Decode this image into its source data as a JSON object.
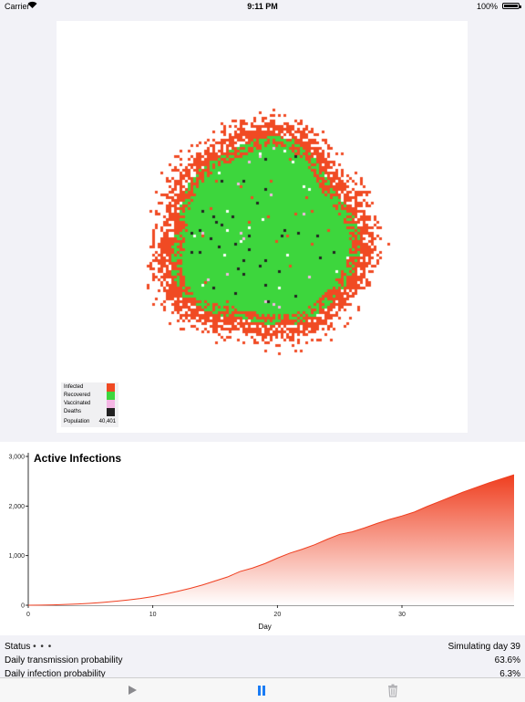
{
  "status_bar": {
    "carrier": "Carrier",
    "time": "9:11 PM",
    "battery": "100%",
    "wifi_icon": "wifi-icon"
  },
  "simulation": {
    "legend": {
      "items": [
        {
          "label": "Infected",
          "color": "#f04a23"
        },
        {
          "label": "Recovered",
          "color": "#3dd63d"
        },
        {
          "label": "Vaccinated",
          "color": "#f4b6e4"
        },
        {
          "label": "Deaths",
          "color": "#222222"
        }
      ],
      "population_label": "Population",
      "population_value": "40,401"
    }
  },
  "chart": {
    "title": "Active Infections",
    "xlabel": "Day",
    "accent_color": "#ef3e1f"
  },
  "chart_data": {
    "type": "area",
    "title": "Active Infections",
    "xlabel": "Day",
    "ylabel": "",
    "xlim": [
      0,
      39
    ],
    "ylim": [
      0,
      3000
    ],
    "xticks": [
      0,
      10,
      20,
      30
    ],
    "yticks": [
      0,
      1000,
      2000,
      3000
    ],
    "ytick_labels": [
      "0",
      "1,000",
      "2,000",
      "3,000"
    ],
    "x": [
      0,
      1,
      2,
      3,
      4,
      5,
      6,
      7,
      8,
      9,
      10,
      11,
      12,
      13,
      14,
      15,
      16,
      17,
      18,
      19,
      20,
      21,
      22,
      23,
      24,
      25,
      26,
      27,
      28,
      29,
      30,
      31,
      32,
      33,
      34,
      35,
      36,
      37,
      38,
      39
    ],
    "values": [
      0,
      3,
      8,
      15,
      25,
      40,
      58,
      80,
      105,
      135,
      175,
      225,
      280,
      340,
      410,
      490,
      570,
      680,
      750,
      840,
      950,
      1050,
      1130,
      1220,
      1330,
      1430,
      1480,
      1560,
      1650,
      1730,
      1800,
      1880,
      1990,
      2090,
      2190,
      2290,
      2380,
      2470,
      2550,
      2630
    ]
  },
  "info": {
    "status_label": "Status",
    "status_dots": "• • •",
    "status_value": "Simulating day 39",
    "transmission_label": "Daily transmission probability",
    "transmission_value": "63.6%",
    "infection_label": "Daily infection probability",
    "infection_value": "6.3%"
  },
  "toolbar": {
    "play_icon": "play-icon",
    "pause_icon": "pause-icon",
    "trash_icon": "trash-icon"
  }
}
